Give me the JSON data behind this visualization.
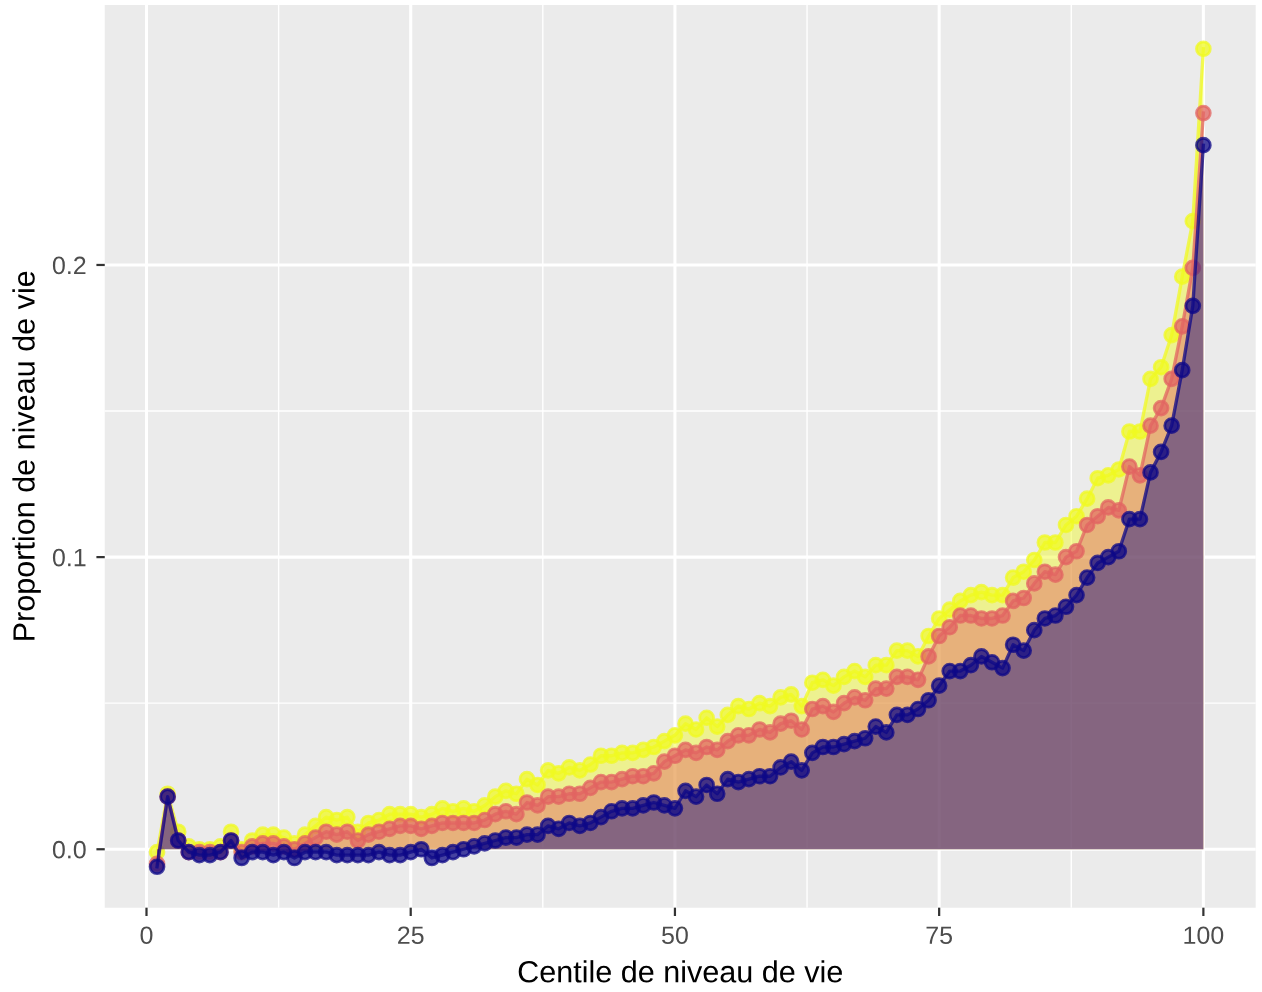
{
  "chart_data": {
    "type": "area",
    "xlabel": "Centile de niveau de vie",
    "ylabel": "Proportion de niveau de vie",
    "x": [
      1,
      2,
      3,
      4,
      5,
      6,
      7,
      8,
      9,
      10,
      11,
      12,
      13,
      14,
      15,
      16,
      17,
      18,
      19,
      20,
      21,
      22,
      23,
      24,
      25,
      26,
      27,
      28,
      29,
      30,
      31,
      32,
      33,
      34,
      35,
      36,
      37,
      38,
      39,
      40,
      41,
      42,
      43,
      44,
      45,
      46,
      47,
      48,
      49,
      50,
      51,
      52,
      53,
      54,
      55,
      56,
      57,
      58,
      59,
      60,
      61,
      62,
      63,
      64,
      65,
      66,
      67,
      68,
      69,
      70,
      71,
      72,
      73,
      74,
      75,
      76,
      77,
      78,
      79,
      80,
      81,
      82,
      83,
      84,
      85,
      86,
      87,
      88,
      89,
      90,
      91,
      92,
      93,
      94,
      95,
      96,
      97,
      98,
      99,
      100
    ],
    "series": [
      {
        "color": "#f0f921",
        "values": [
          -0.001,
          0.019,
          0.006,
          0.001,
          0.0,
          0.0,
          0.001,
          0.006,
          0.0,
          0.003,
          0.005,
          0.005,
          0.004,
          0.002,
          0.005,
          0.008,
          0.011,
          0.01,
          0.011,
          0.006,
          0.009,
          0.01,
          0.012,
          0.012,
          0.012,
          0.011,
          0.012,
          0.014,
          0.013,
          0.014,
          0.013,
          0.015,
          0.018,
          0.02,
          0.019,
          0.024,
          0.022,
          0.027,
          0.026,
          0.028,
          0.027,
          0.029,
          0.032,
          0.032,
          0.033,
          0.033,
          0.034,
          0.035,
          0.037,
          0.039,
          0.043,
          0.041,
          0.045,
          0.042,
          0.046,
          0.049,
          0.048,
          0.05,
          0.049,
          0.052,
          0.053,
          0.049,
          0.057,
          0.058,
          0.056,
          0.059,
          0.061,
          0.059,
          0.063,
          0.063,
          0.068,
          0.068,
          0.066,
          0.073,
          0.079,
          0.082,
          0.085,
          0.087,
          0.088,
          0.087,
          0.087,
          0.093,
          0.095,
          0.099,
          0.105,
          0.105,
          0.111,
          0.114,
          0.12,
          0.127,
          0.128,
          0.13,
          0.143,
          0.143,
          0.161,
          0.165,
          0.176,
          0.196,
          0.215,
          0.274
        ]
      },
      {
        "color": "#e16462",
        "values": [
          -0.005,
          0.018,
          0.003,
          -0.001,
          -0.001,
          -0.001,
          -0.001,
          0.003,
          -0.001,
          0.001,
          0.002,
          0.002,
          0.001,
          0.0,
          0.002,
          0.004,
          0.006,
          0.005,
          0.006,
          0.003,
          0.005,
          0.006,
          0.007,
          0.008,
          0.008,
          0.007,
          0.008,
          0.009,
          0.009,
          0.009,
          0.009,
          0.01,
          0.012,
          0.013,
          0.012,
          0.016,
          0.015,
          0.018,
          0.018,
          0.019,
          0.019,
          0.021,
          0.023,
          0.023,
          0.024,
          0.025,
          0.025,
          0.026,
          0.03,
          0.032,
          0.034,
          0.033,
          0.035,
          0.034,
          0.037,
          0.039,
          0.039,
          0.041,
          0.04,
          0.043,
          0.044,
          0.041,
          0.048,
          0.049,
          0.047,
          0.05,
          0.052,
          0.051,
          0.055,
          0.055,
          0.059,
          0.059,
          0.058,
          0.066,
          0.073,
          0.076,
          0.08,
          0.08,
          0.079,
          0.079,
          0.08,
          0.085,
          0.086,
          0.091,
          0.095,
          0.094,
          0.1,
          0.102,
          0.111,
          0.114,
          0.117,
          0.116,
          0.131,
          0.128,
          0.145,
          0.151,
          0.161,
          0.179,
          0.199,
          0.252
        ]
      },
      {
        "color": "#0d0887",
        "values": [
          -0.006,
          0.018,
          0.003,
          -0.001,
          -0.002,
          -0.002,
          -0.001,
          0.003,
          -0.003,
          -0.001,
          -0.001,
          -0.002,
          -0.001,
          -0.003,
          -0.001,
          -0.001,
          -0.001,
          -0.002,
          -0.002,
          -0.002,
          -0.002,
          -0.001,
          -0.002,
          -0.002,
          -0.001,
          0.0,
          -0.003,
          -0.002,
          -0.001,
          0.0,
          0.001,
          0.002,
          0.003,
          0.004,
          0.004,
          0.005,
          0.005,
          0.008,
          0.007,
          0.009,
          0.008,
          0.009,
          0.011,
          0.013,
          0.014,
          0.014,
          0.015,
          0.016,
          0.015,
          0.014,
          0.02,
          0.018,
          0.022,
          0.019,
          0.024,
          0.023,
          0.024,
          0.025,
          0.025,
          0.028,
          0.03,
          0.027,
          0.033,
          0.035,
          0.035,
          0.036,
          0.037,
          0.038,
          0.042,
          0.04,
          0.046,
          0.046,
          0.048,
          0.051,
          0.056,
          0.061,
          0.061,
          0.063,
          0.066,
          0.064,
          0.062,
          0.07,
          0.068,
          0.075,
          0.079,
          0.08,
          0.083,
          0.087,
          0.093,
          0.098,
          0.1,
          0.102,
          0.113,
          0.113,
          0.129,
          0.136,
          0.145,
          0.164,
          0.186,
          0.241
        ]
      }
    ],
    "xlim": [
      -3.95,
      104.95
    ],
    "xticks": [
      0,
      25,
      50,
      75,
      100
    ],
    "ylim": [
      -0.02,
      0.289
    ],
    "yticks": [
      {
        "value": 0,
        "label": "0.0"
      },
      {
        "value": 0.1,
        "label": "0.1"
      },
      {
        "value": 0.2,
        "label": "0.2"
      }
    ],
    "grid": true,
    "marker": "circle",
    "legend": false
  }
}
